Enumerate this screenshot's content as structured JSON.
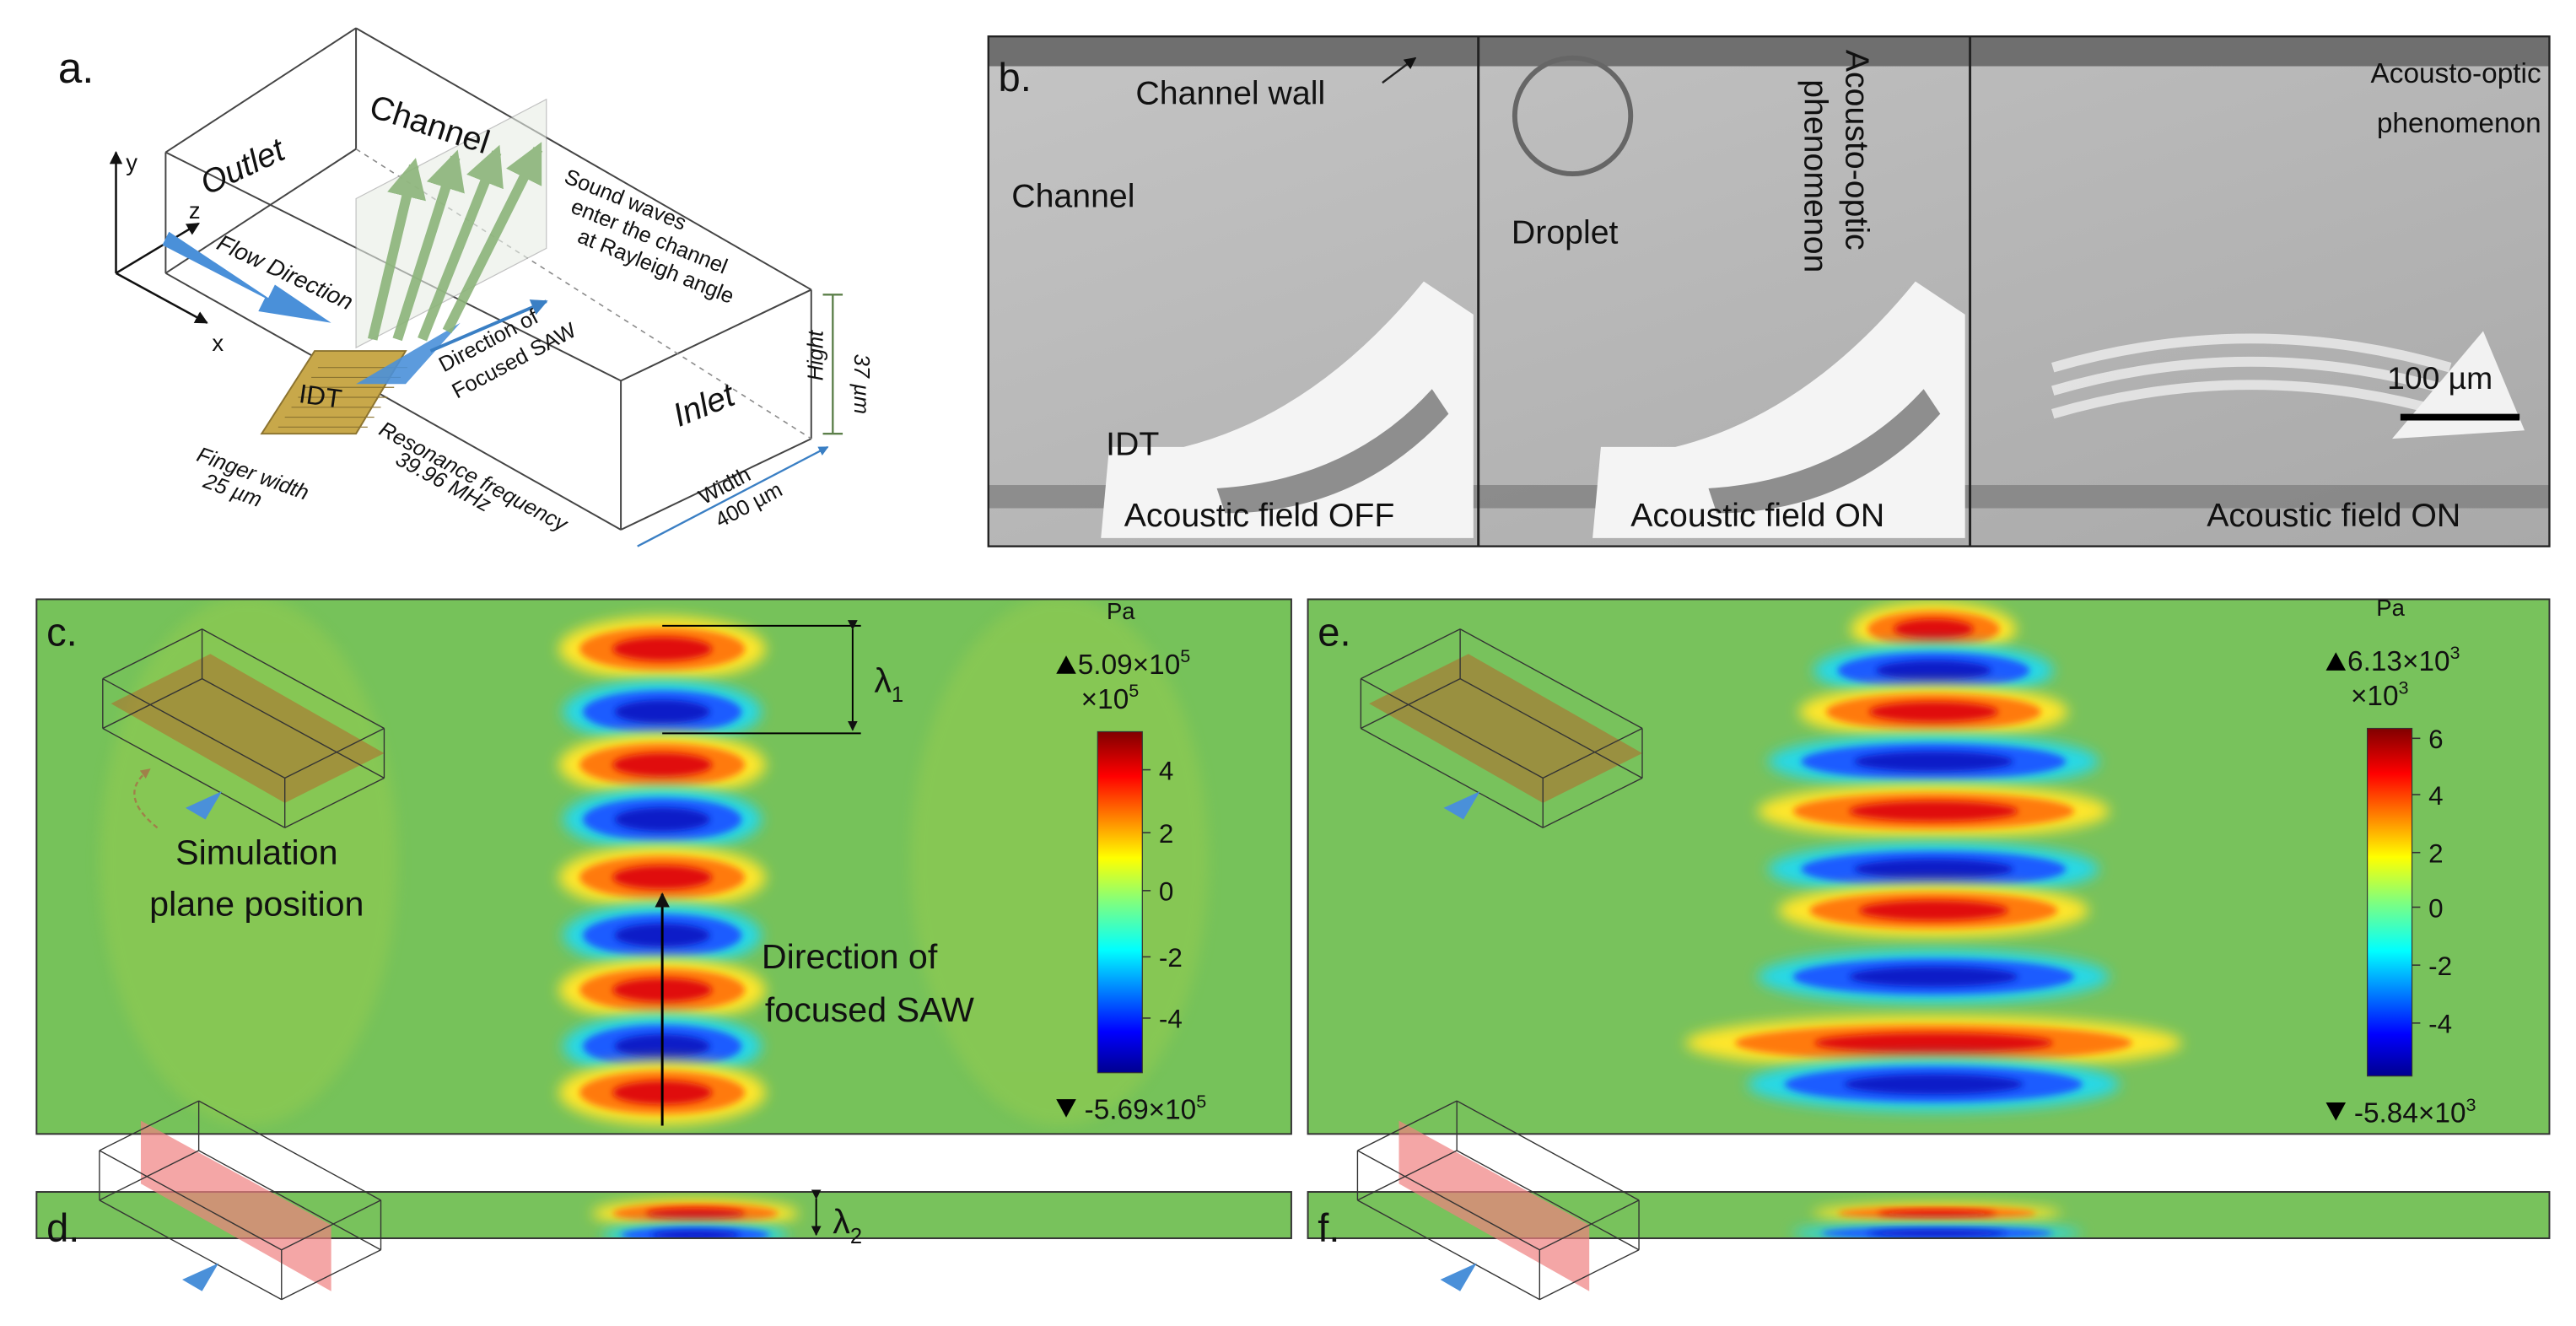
{
  "panel_a": {
    "label": "a.",
    "axes": {
      "y": "y",
      "z": "z",
      "x": "x"
    },
    "outlet": "Outlet",
    "channel": "Channel",
    "flow_direction": "Flow Direction",
    "sound_waves": [
      "Sound waves",
      "enter the channel",
      "at Rayleigh angle"
    ],
    "saw_direction": [
      "Direction of",
      "Focused SAW"
    ],
    "idt": "IDT",
    "finger_width": [
      "Finger width",
      "25 µm"
    ],
    "resonance": [
      "Resonance frequency",
      "39.96 MHz"
    ],
    "inlet": "Inlet",
    "width": [
      "Width",
      "400 µm"
    ],
    "height": [
      "Hight",
      "37 µm"
    ]
  },
  "panel_b": {
    "label": "b.",
    "channel_wall": "Channel wall",
    "channel": "Channel",
    "idt": "IDT",
    "field_off": "Acoustic field OFF",
    "droplet": "Droplet",
    "acousto_optic_1": [
      "Acousto-optic",
      "phenomenon"
    ],
    "field_on_1": "Acoustic field ON",
    "acousto_optic_2": [
      "Acousto-optic",
      "phenomenon"
    ],
    "scale_bar": "100 µm",
    "field_on_2": "Acoustic field ON"
  },
  "panel_c": {
    "label": "c.",
    "wavelength": {
      "symbol": "λ",
      "subscript": "1"
    },
    "simulation_plane": [
      "Simulation",
      "plane position"
    ],
    "saw_direction": [
      "Direction of",
      "focused SAW"
    ],
    "colorbar": {
      "unit": "Pa",
      "max": {
        "mantissa": "5.09×10",
        "exponent": "5"
      },
      "multiplier": {
        "base": "×10",
        "exponent": "5"
      },
      "ticks": [
        "4",
        "2",
        "0",
        "-2",
        "-4"
      ],
      "min": {
        "mantissa": "-5.69×10",
        "exponent": "5"
      }
    }
  },
  "panel_d": {
    "label": "d.",
    "wavelength": {
      "symbol": "λ",
      "subscript": "2"
    }
  },
  "panel_e": {
    "label": "e.",
    "colorbar": {
      "unit": "Pa",
      "max": {
        "mantissa": "6.13×10",
        "exponent": "3"
      },
      "multiplier": {
        "base": "×10",
        "exponent": "3"
      },
      "ticks": [
        "6",
        "4",
        "2",
        "0",
        "-2",
        "-4"
      ],
      "min": {
        "mantissa": "-5.84×10",
        "exponent": "3"
      }
    }
  },
  "panel_f": {
    "label": "f."
  }
}
